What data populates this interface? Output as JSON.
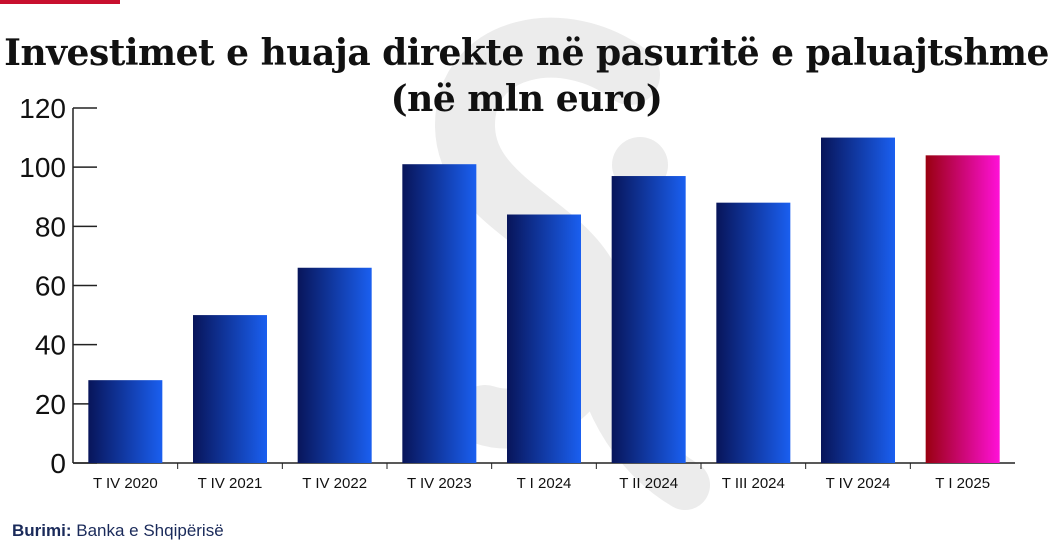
{
  "chart_data": {
    "type": "bar",
    "title_line1": "Investimet e huaja direkte në pasuritë e paluajtshme",
    "title_line2": "(në mln euro)",
    "categories": [
      "T IV 2020",
      "T IV 2021",
      "T IV 2022",
      "T IV 2023",
      "T I 2024",
      "T II 2024",
      "T III 2024",
      "T IV 2024",
      "T I 2025"
    ],
    "values": [
      28,
      50,
      66,
      101,
      84,
      97,
      88,
      110,
      104
    ],
    "ylim": [
      0,
      120
    ],
    "yticks": [
      0,
      20,
      40,
      60,
      80,
      100,
      120
    ],
    "highlight_index": 8,
    "colors": {
      "bar_start": "#08155a",
      "bar_end": "#1a5ff0",
      "highlight_start": "#990010",
      "highlight_end": "#ff10d8",
      "axis": "#222222"
    }
  },
  "source": {
    "label": "Burimi:",
    "text": "Banka e Shqipërisë"
  }
}
